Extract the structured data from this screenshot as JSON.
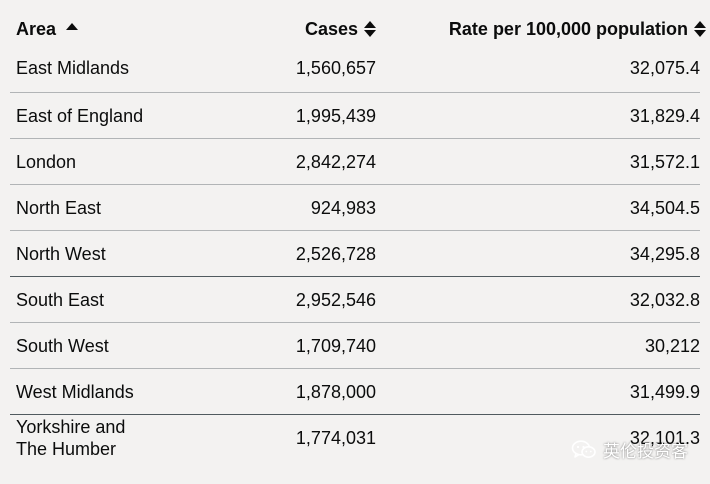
{
  "table": {
    "headers": {
      "area": "Area",
      "cases": "Cases",
      "rate": "Rate per 100,000 population"
    },
    "sort": {
      "column": "area",
      "direction": "ascending"
    },
    "rows": [
      {
        "area": "East Midlands",
        "cases": "1,560,657",
        "rate": "32,075.4"
      },
      {
        "area": "East of England",
        "cases": "1,995,439",
        "rate": "31,829.4"
      },
      {
        "area": "London",
        "cases": "2,842,274",
        "rate": "31,572.1"
      },
      {
        "area": "North East",
        "cases": "924,983",
        "rate": "34,504.5"
      },
      {
        "area": "North West",
        "cases": "2,526,728",
        "rate": "34,295.8"
      },
      {
        "area": "South East",
        "cases": "2,952,546",
        "rate": "32,032.8"
      },
      {
        "area": "South West",
        "cases": "1,709,740",
        "rate": "30,212"
      },
      {
        "area": "West Midlands",
        "cases": "1,878,000",
        "rate": "31,499.9"
      },
      {
        "area": "Yorkshire and The Humber",
        "cases": "1,774,031",
        "rate": "32,101.3"
      }
    ]
  },
  "watermark": {
    "icon": "wechat-icon",
    "text": "英伦投资客"
  },
  "colors": {
    "background": "#f3f2f1",
    "text": "#0b0c0c",
    "row_border": "#b1b4b6"
  }
}
